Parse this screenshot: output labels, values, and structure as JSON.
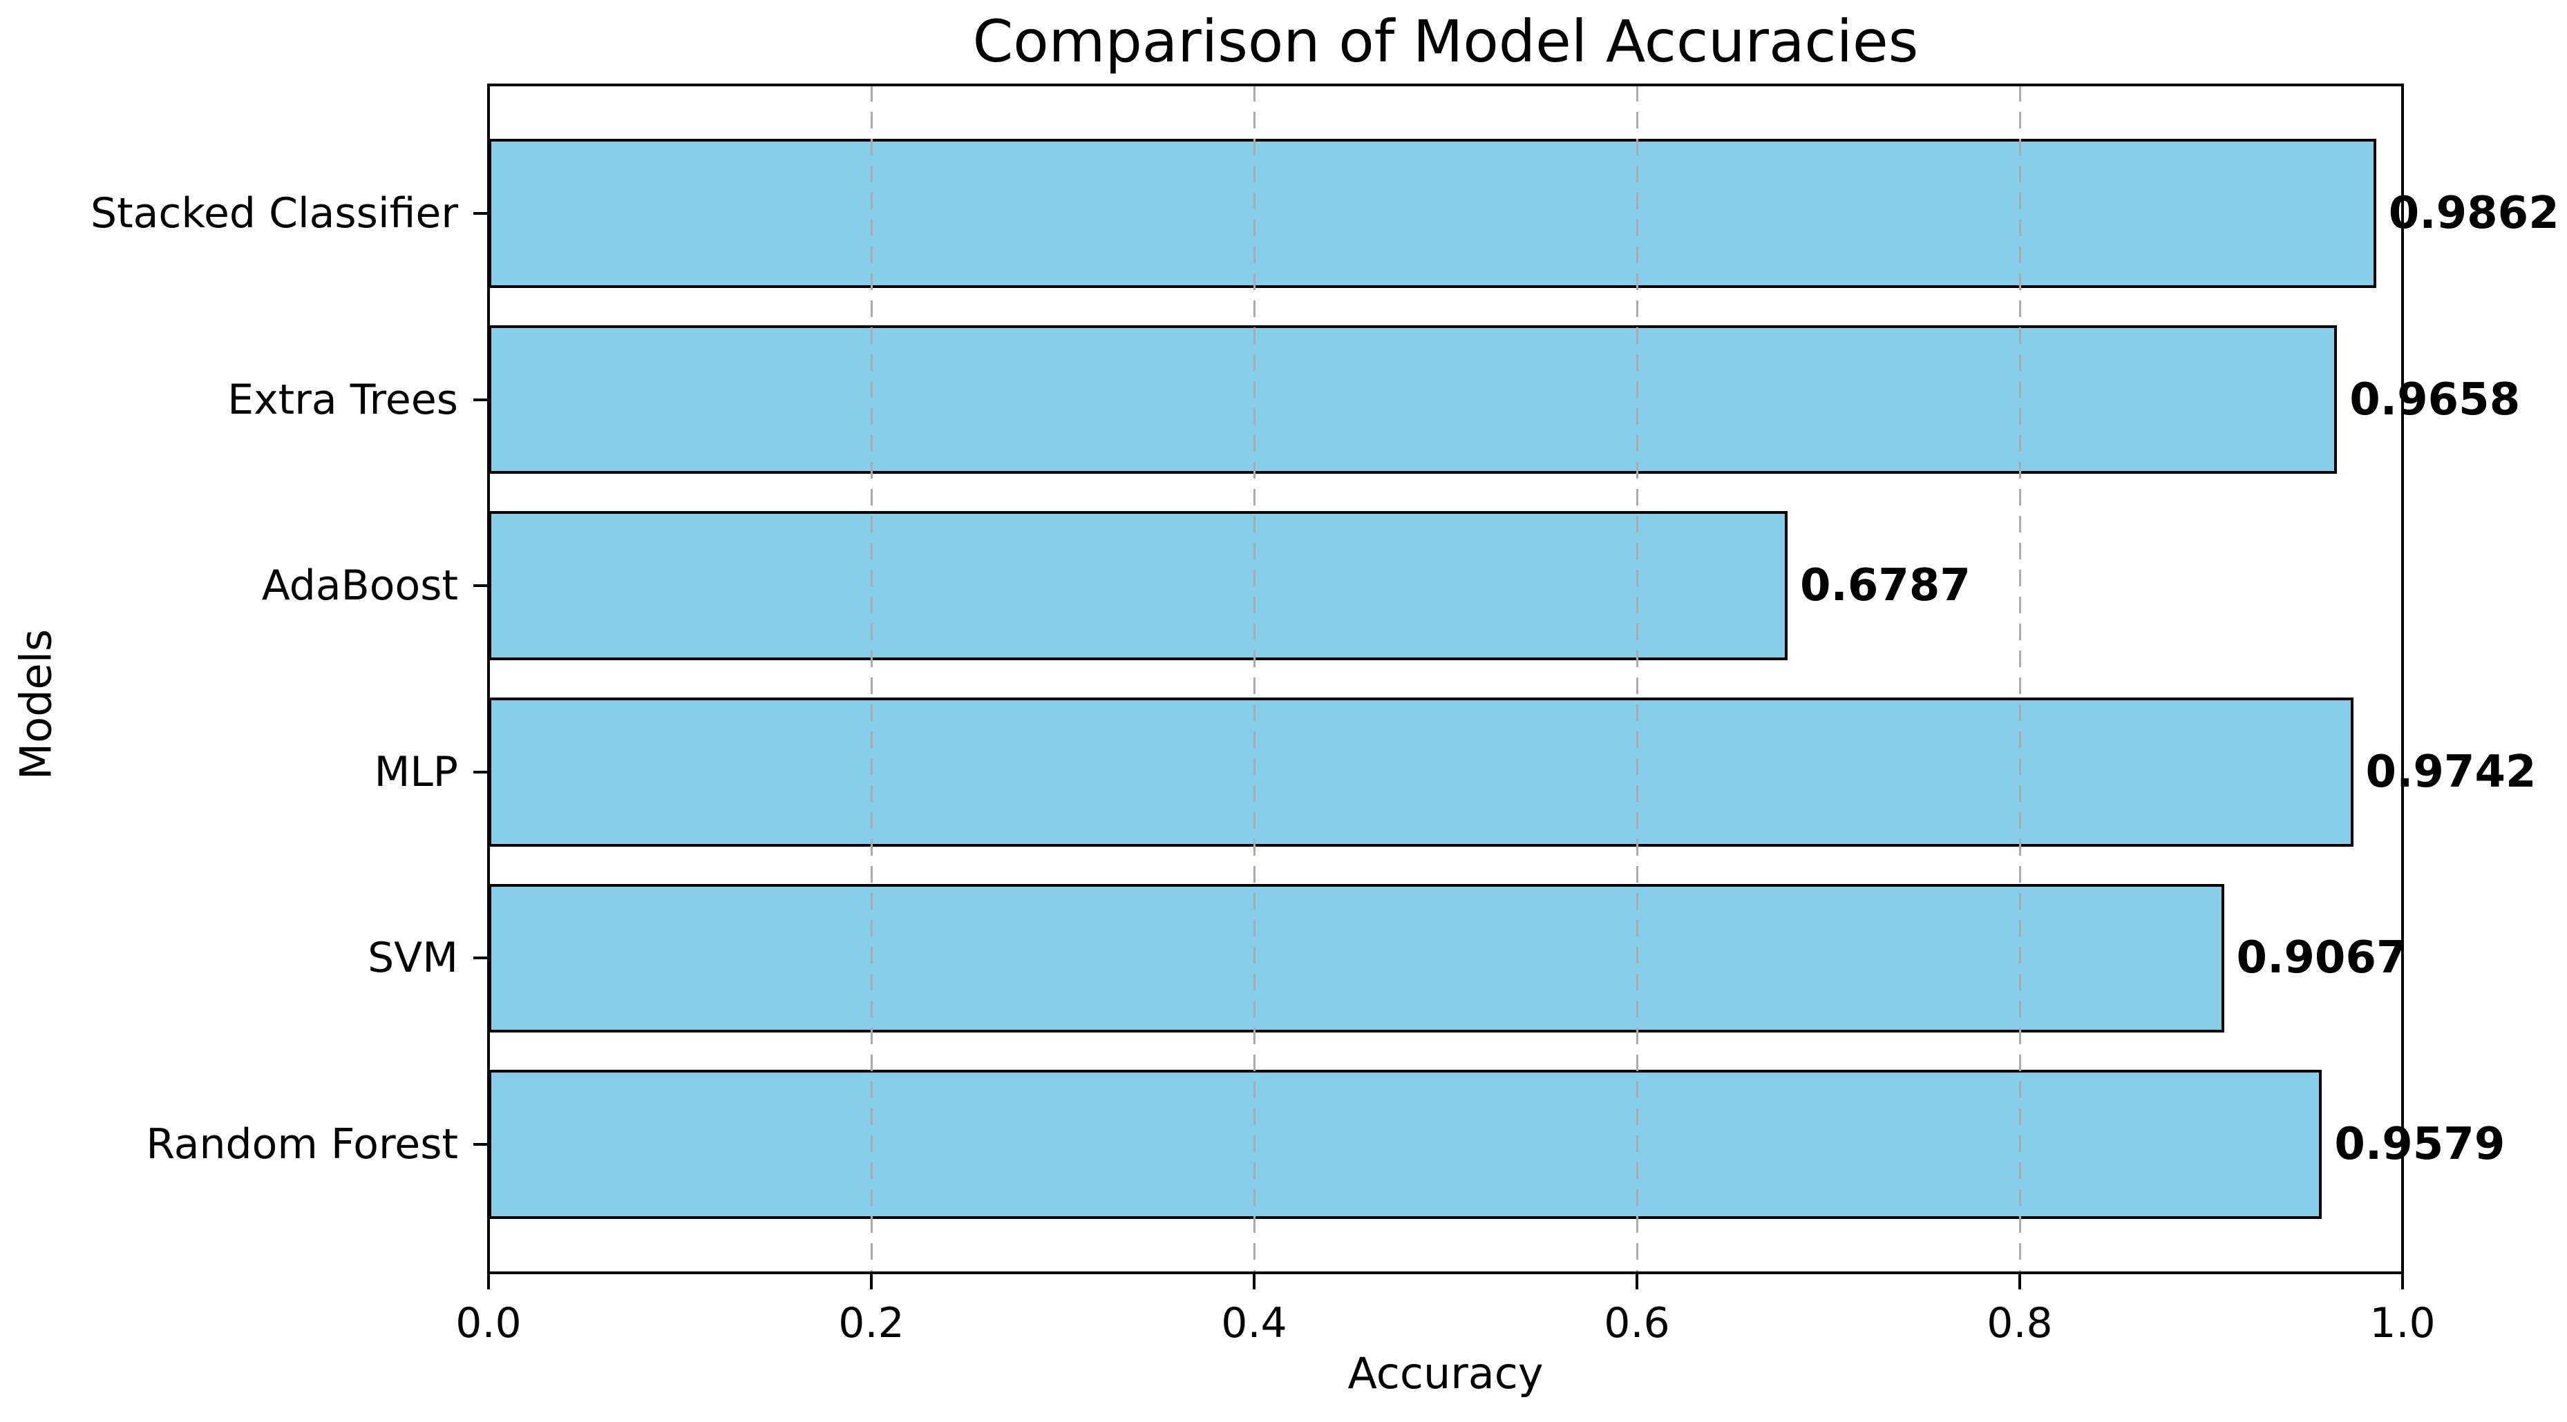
{
  "chart_data": {
    "type": "bar",
    "orientation": "horizontal",
    "title": "Comparison of Model Accuracies",
    "xlabel": "Accuracy",
    "ylabel": "Models",
    "order": "top_to_bottom",
    "categories": [
      "Stacked Classifier",
      "Extra Trees",
      "AdaBoost",
      "MLP",
      "SVM",
      "Random Forest"
    ],
    "values": [
      0.9862,
      0.9658,
      0.6787,
      0.9742,
      0.9067,
      0.9579
    ],
    "value_labels": [
      "0.9862",
      "0.9658",
      "0.6787",
      "0.9742",
      "0.9067",
      "0.9579"
    ],
    "xlim": [
      0.0,
      1.0
    ],
    "x_tick_values": [
      0.0,
      0.2,
      0.4,
      0.6,
      0.8,
      1.0
    ],
    "x_tick_labels": [
      "0.0",
      "0.2",
      "0.4",
      "0.6",
      "0.8",
      "1.0"
    ],
    "grid": "vertical-dashed",
    "legend": "none",
    "bar_color": "#87CEEB",
    "bar_edge_color": "#000000",
    "grid_color": "#ababab",
    "text_color": "#000000"
  }
}
